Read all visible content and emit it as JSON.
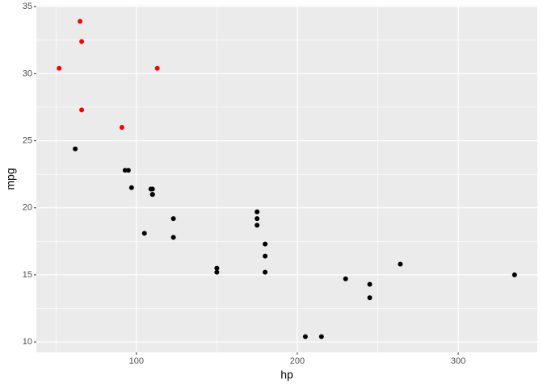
{
  "chart_data": {
    "type": "scatter",
    "x_label": "hp",
    "y_label": "mpg",
    "series": [
      {
        "color": "#000000",
        "x": [
          110,
          110,
          93,
          110,
          175,
          105,
          245,
          62,
          95,
          123,
          123,
          180,
          180,
          180,
          205,
          215,
          230,
          97,
          150,
          150,
          245,
          175,
          264,
          175,
          335,
          109
        ],
        "values": [
          21.0,
          21.0,
          22.8,
          21.4,
          18.7,
          18.1,
          14.3,
          24.4,
          22.8,
          19.2,
          17.8,
          16.4,
          17.3,
          15.2,
          10.4,
          10.4,
          14.7,
          21.5,
          15.5,
          15.2,
          13.3,
          19.2,
          15.8,
          19.7,
          15.0,
          21.4
        ]
      },
      {
        "color": "#ff0000",
        "x": [
          66,
          52,
          65,
          66,
          91,
          113
        ],
        "values": [
          32.4,
          30.4,
          33.9,
          27.3,
          26.0,
          30.4
        ]
      }
    ],
    "xlim": [
      37.85,
      349.15
    ],
    "ylim": [
      9.225,
      35.075
    ],
    "xticks": [
      100,
      200,
      300
    ],
    "yticks": [
      10,
      15,
      20,
      25,
      30,
      35
    ],
    "grid": true,
    "background": "#ebebeb"
  }
}
